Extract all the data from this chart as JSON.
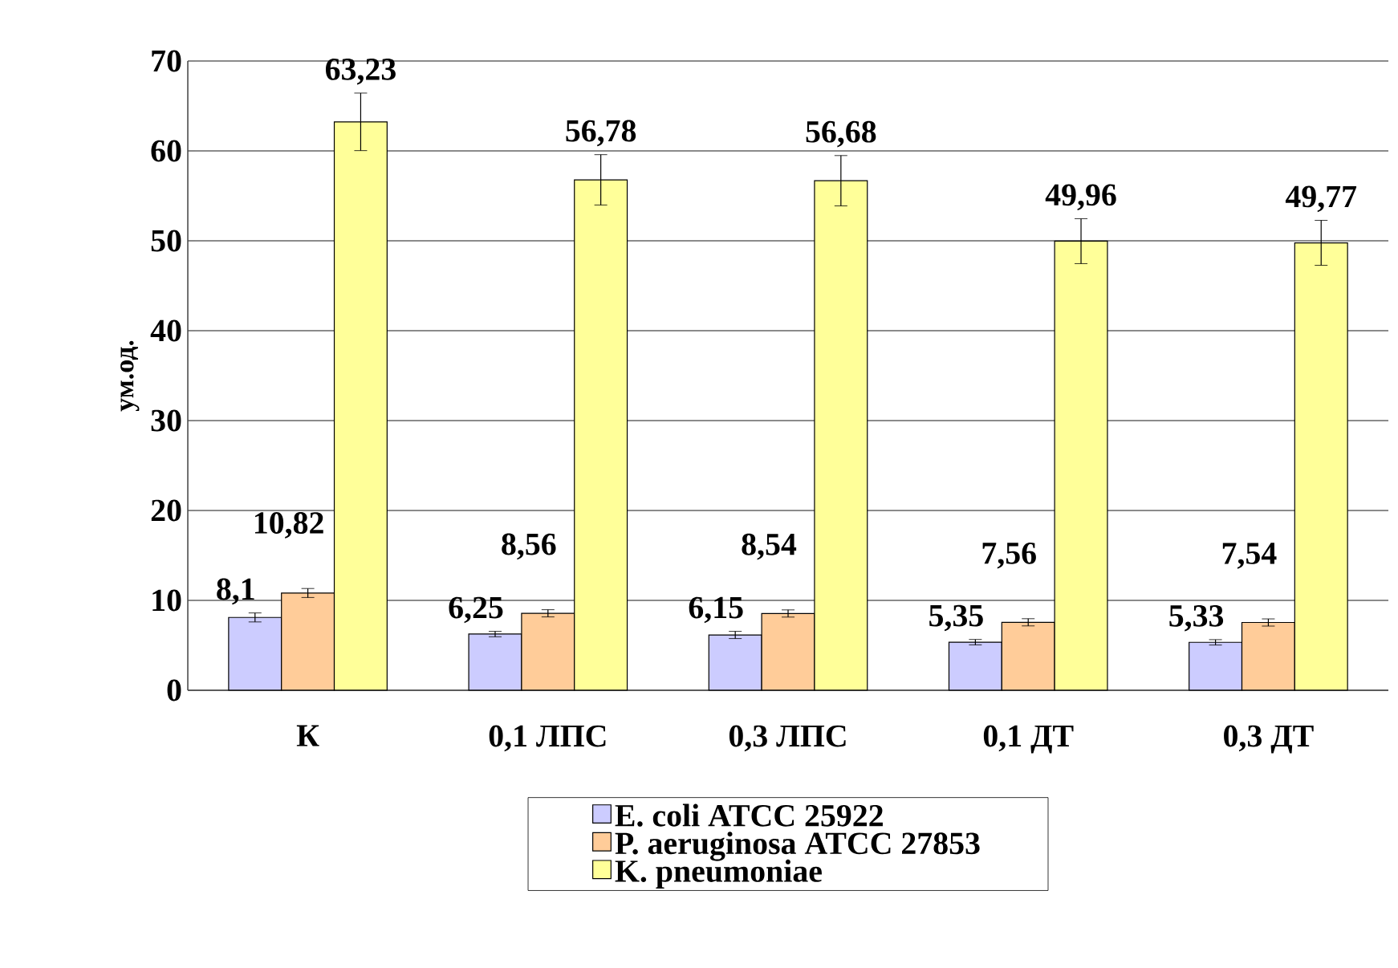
{
  "chart_data": {
    "type": "bar",
    "ylabel": "ум.од.",
    "categories": [
      "К",
      "0,1 ЛПС",
      "0,3 ЛПС",
      "0,1 ДТ",
      "0,3 ДТ"
    ],
    "series": [
      {
        "name": "E. coli ATCC 25922",
        "color": "#ccccff",
        "values": [
          8.1,
          6.25,
          6.15,
          5.35,
          5.33
        ],
        "errors": [
          0.5,
          0.3,
          0.4,
          0.3,
          0.3
        ],
        "value_labels": [
          "8,1",
          "6,25",
          "6,15",
          "5,35",
          "5,33"
        ]
      },
      {
        "name": "P. aeruginosa ATCC 27853",
        "color": "#ffcc99",
        "values": [
          10.82,
          8.56,
          8.54,
          7.56,
          7.54
        ],
        "errors": [
          0.5,
          0.4,
          0.4,
          0.4,
          0.4
        ],
        "value_labels": [
          "10,82",
          "8,56",
          "8,54",
          "7,56",
          "7,54"
        ]
      },
      {
        "name": "K. pneumoniae",
        "color": "#ffff99",
        "values": [
          63.23,
          56.78,
          56.68,
          49.96,
          49.77
        ],
        "errors": [
          3.2,
          2.8,
          2.8,
          2.5,
          2.5
        ],
        "value_labels": [
          "63,23",
          "56,78",
          "56,68",
          "49,96",
          "49,77"
        ]
      }
    ],
    "ylim": [
      0,
      70
    ],
    "yticks": [
      0,
      10,
      20,
      30,
      40,
      50,
      60,
      70
    ],
    "grid": "y",
    "legend": "bottom"
  }
}
